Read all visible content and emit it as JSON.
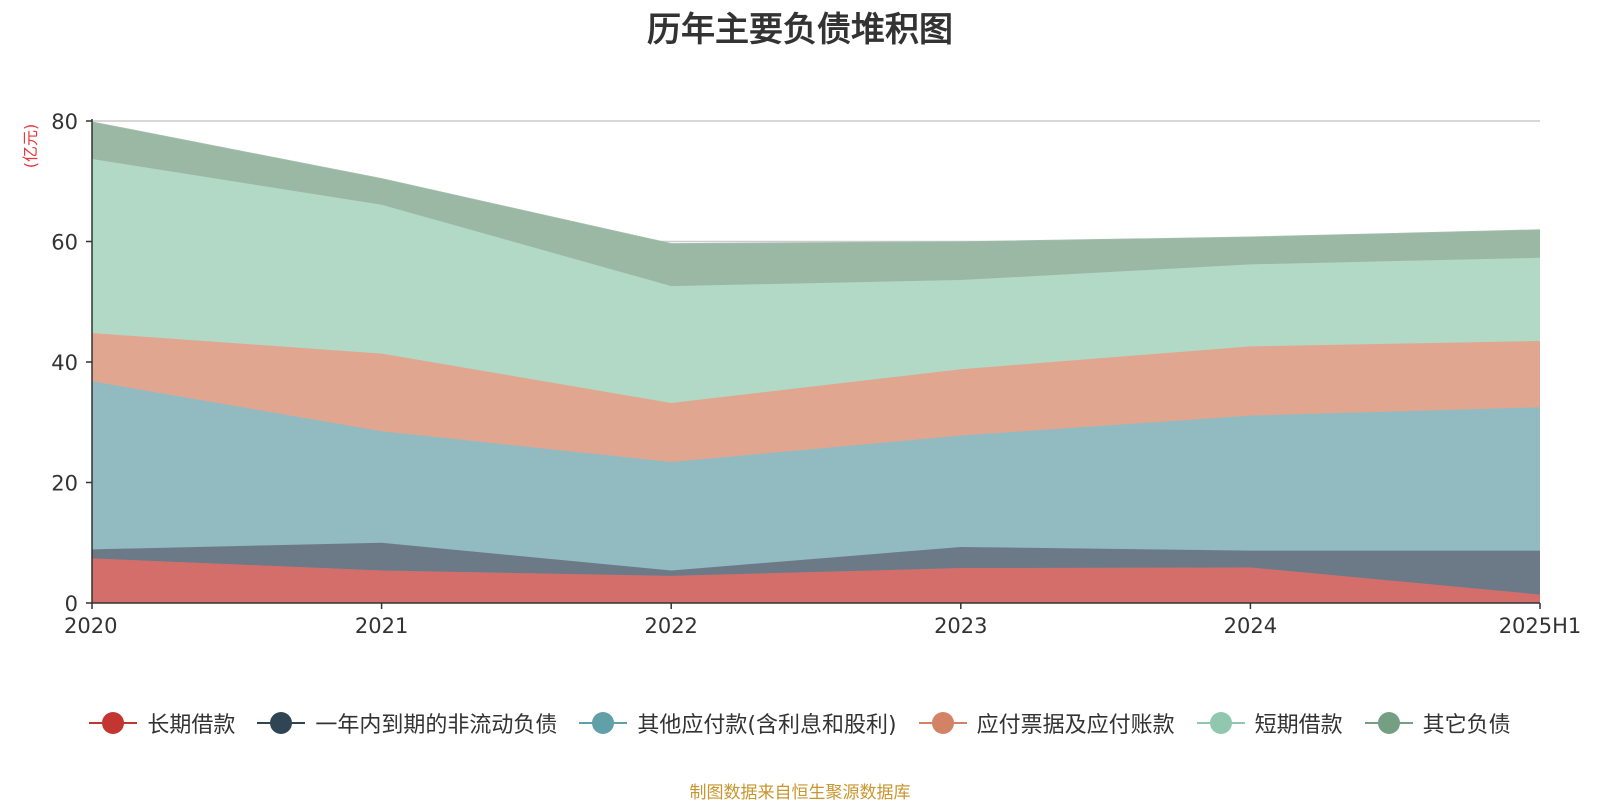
{
  "chart_data": {
    "type": "area",
    "stacked": true,
    "title": "历年主要负债堆积图",
    "ylabel": "(亿元)",
    "categories": [
      "2020",
      "2021",
      "2022",
      "2023",
      "2024",
      "2025H1"
    ],
    "ylim": [
      0,
      80
    ],
    "yticks": [
      0,
      20,
      40,
      60,
      80
    ],
    "grid": true,
    "legend_position": "bottom",
    "series": [
      {
        "name": "长期借款",
        "color": "#d46e6b",
        "values": [
          7.4,
          5.4,
          4.5,
          5.8,
          5.9,
          1.4
        ]
      },
      {
        "name": "一年内到期的非流动负债",
        "color": "#6b7a86",
        "values": [
          1.5,
          4.6,
          0.9,
          3.5,
          2.8,
          7.3
        ]
      },
      {
        "name": "其他应付款(含利息和股利)",
        "color": "#91bac1",
        "values": [
          27.9,
          18.5,
          18.0,
          18.5,
          22.4,
          23.8
        ]
      },
      {
        "name": "应付票据及应付账款",
        "color": "#e0a68f",
        "values": [
          8.0,
          12.9,
          9.8,
          11.0,
          11.5,
          11.0
        ]
      },
      {
        "name": "短期借款",
        "color": "#b2d8c6",
        "values": [
          28.9,
          24.7,
          19.4,
          14.8,
          13.6,
          13.8
        ]
      },
      {
        "name": "其它负债",
        "color": "#9bb8a5",
        "values": [
          6.1,
          4.3,
          7.0,
          6.3,
          4.5,
          4.6
        ]
      }
    ],
    "legend_colors": [
      "#c23531",
      "#2f4554",
      "#61a0a8",
      "#d48265",
      "#91c7ae",
      "#749f83"
    ]
  },
  "source": "制图数据来自恒生聚源数据库"
}
